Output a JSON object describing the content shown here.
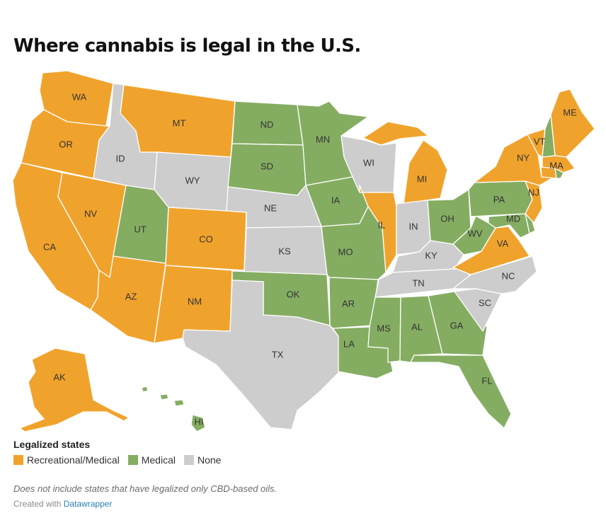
{
  "title": "Where cannabis is legal in the U.S.",
  "legend": {
    "title": "Legalized states",
    "items": [
      {
        "label": "Recreational/Medical",
        "color": "#f0a32c"
      },
      {
        "label": "Medical",
        "color": "#85ad62"
      },
      {
        "label": "None",
        "color": "#cdcdcd"
      }
    ]
  },
  "note": "Does not include states that have legalized only CBD-based oils.",
  "credit": {
    "prefix": "Created with",
    "link": "Datawrapper"
  },
  "states": {
    "WA": "rec",
    "OR": "rec",
    "CA": "rec",
    "NV": "rec",
    "ID": "none",
    "MT": "rec",
    "WY": "none",
    "UT": "med",
    "AZ": "rec",
    "CO": "rec",
    "NM": "rec",
    "ND": "med",
    "SD": "med",
    "NE": "none",
    "KS": "none",
    "OK": "med",
    "TX": "none",
    "MN": "med",
    "IA": "med",
    "MO": "med",
    "AR": "med",
    "LA": "med",
    "WI": "none",
    "IL": "rec",
    "MI": "rec",
    "IN": "none",
    "OH": "med",
    "KY": "none",
    "TN": "none",
    "MS": "med",
    "AL": "med",
    "GA": "med",
    "FL": "med",
    "SC": "none",
    "NC": "none",
    "VA": "rec",
    "WV": "med",
    "MD": "med",
    "DE": "med",
    "NJ": "rec",
    "PA": "med",
    "NY": "rec",
    "VT": "rec",
    "NH": "med",
    "ME": "rec",
    "MA": "rec",
    "CT": "rec",
    "RI": "med",
    "AK": "rec",
    "HI": "med"
  },
  "status_colors": {
    "rec": "#f0a32c",
    "med": "#85ad62",
    "none": "#cdcdcd"
  }
}
